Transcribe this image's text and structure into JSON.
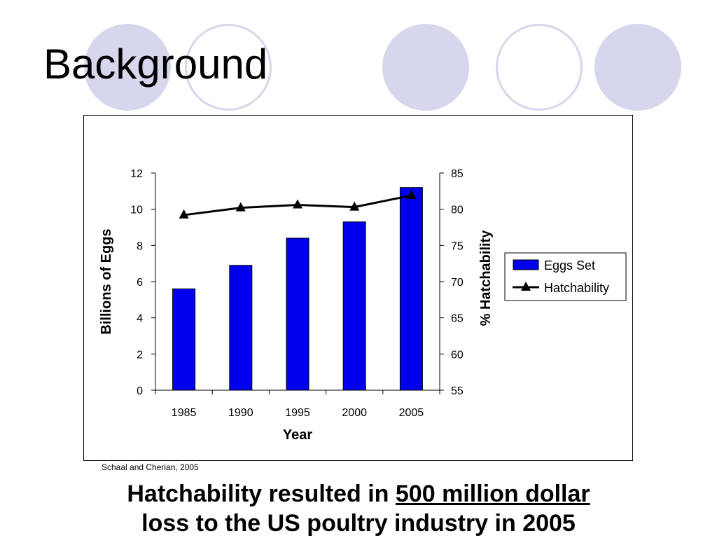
{
  "slide": {
    "title": "Background",
    "source": "Schaal and Cherian, 2005",
    "headline": {
      "before": "Hatchability resulted in ",
      "emphasis": "500 million dollar",
      "after": "loss to the US poultry industry in 2005"
    }
  },
  "colors": {
    "bar": "#0000ee",
    "line": "#000000",
    "decoration": "#d6d6ec"
  },
  "chart_data": {
    "type": "bar",
    "categories": [
      "1985",
      "1990",
      "1995",
      "2000",
      "2005"
    ],
    "xlabel": "Year",
    "ylabel": "Billions of Eggs",
    "y2label": "% Hatchability",
    "ylim": [
      0,
      12
    ],
    "y2lim": [
      55,
      85
    ],
    "yticks": [
      "0",
      "2",
      "4",
      "6",
      "8",
      "10",
      "12"
    ],
    "y2ticks": [
      "55",
      "60",
      "65",
      "70",
      "75",
      "80",
      "85"
    ],
    "legend_position": "right",
    "grid": false,
    "series": [
      {
        "name": "Eggs Set",
        "type": "bar",
        "axis": "left",
        "values": [
          5.6,
          6.9,
          8.4,
          9.3,
          11.2
        ]
      },
      {
        "name": "Hatchability",
        "type": "line",
        "axis": "right",
        "marker": "triangle",
        "values": [
          79.2,
          80.2,
          80.6,
          80.3,
          81.9
        ]
      }
    ]
  }
}
